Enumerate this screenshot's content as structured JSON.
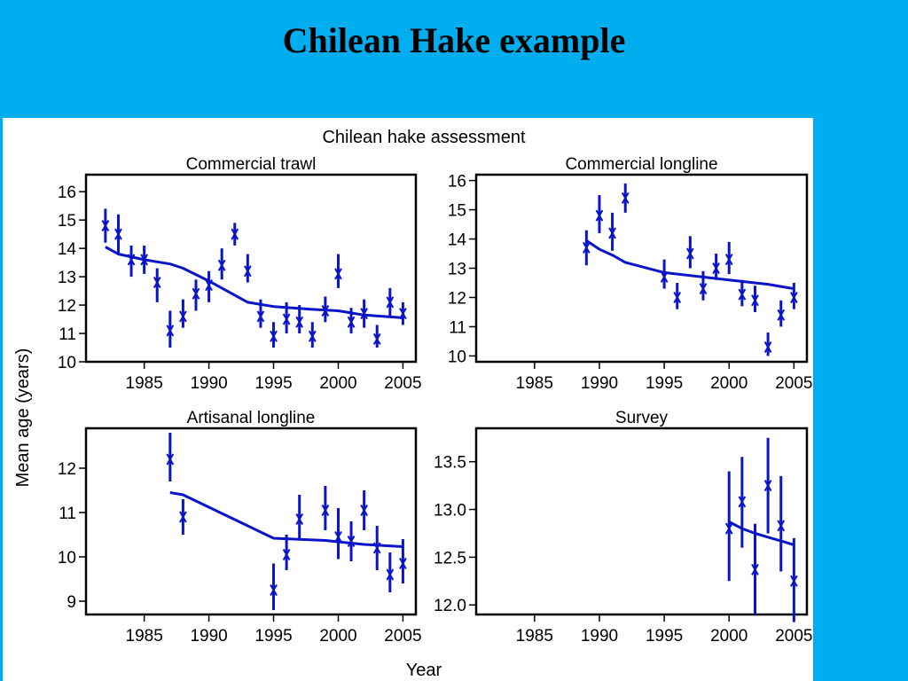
{
  "slide": {
    "title": "Chilean Hake example",
    "background_color": "#00AEEF"
  },
  "figure": {
    "title": "Chilean hake assessment",
    "ylabel": "Mean age (years)",
    "xlabel": "Year",
    "colors": {
      "series": "#0A14C8",
      "axes": "#000000",
      "panel": "#FFFFFF"
    }
  },
  "chart_data": [
    {
      "type": "scatter",
      "title": "Commercial trawl",
      "xlim": [
        1980.5,
        2006
      ],
      "ylim": [
        10,
        16.6
      ],
      "x_ticks": [
        1985,
        1990,
        1995,
        2000,
        2005
      ],
      "y_ticks": [
        10,
        11,
        12,
        13,
        14,
        15,
        16
      ],
      "observed": [
        {
          "x": 1982,
          "y": 14.8,
          "lo": 14.2,
          "hi": 15.4
        },
        {
          "x": 1983,
          "y": 14.5,
          "lo": 13.8,
          "hi": 15.2
        },
        {
          "x": 1984,
          "y": 13.6,
          "lo": 13.0,
          "hi": 14.1
        },
        {
          "x": 1985,
          "y": 13.6,
          "lo": 13.1,
          "hi": 14.1
        },
        {
          "x": 1986,
          "y": 12.8,
          "lo": 12.1,
          "hi": 13.3
        },
        {
          "x": 1987,
          "y": 11.1,
          "lo": 10.5,
          "hi": 11.8
        },
        {
          "x": 1988,
          "y": 11.6,
          "lo": 11.2,
          "hi": 12.2
        },
        {
          "x": 1989,
          "y": 12.4,
          "lo": 11.8,
          "hi": 12.9
        },
        {
          "x": 1990,
          "y": 12.7,
          "lo": 12.1,
          "hi": 13.2
        },
        {
          "x": 1991,
          "y": 13.4,
          "lo": 12.9,
          "hi": 14.0
        },
        {
          "x": 1992,
          "y": 14.5,
          "lo": 14.1,
          "hi": 14.9
        },
        {
          "x": 1993,
          "y": 13.2,
          "lo": 12.8,
          "hi": 13.8
        },
        {
          "x": 1994,
          "y": 11.6,
          "lo": 11.2,
          "hi": 12.2
        },
        {
          "x": 1995,
          "y": 10.9,
          "lo": 10.5,
          "hi": 11.4
        },
        {
          "x": 1996,
          "y": 11.5,
          "lo": 11.0,
          "hi": 12.1
        },
        {
          "x": 1997,
          "y": 11.4,
          "lo": 11.0,
          "hi": 12.0
        },
        {
          "x": 1998,
          "y": 10.9,
          "lo": 10.5,
          "hi": 11.4
        },
        {
          "x": 1999,
          "y": 11.8,
          "lo": 11.4,
          "hi": 12.3
        },
        {
          "x": 2000,
          "y": 13.1,
          "lo": 12.6,
          "hi": 13.8
        },
        {
          "x": 2001,
          "y": 11.4,
          "lo": 11.0,
          "hi": 11.9
        },
        {
          "x": 2002,
          "y": 11.7,
          "lo": 11.2,
          "hi": 12.2
        },
        {
          "x": 2003,
          "y": 10.8,
          "lo": 10.5,
          "hi": 11.3
        },
        {
          "x": 2004,
          "y": 12.1,
          "lo": 11.6,
          "hi": 12.6
        },
        {
          "x": 2005,
          "y": 11.7,
          "lo": 11.3,
          "hi": 12.1
        }
      ],
      "fitted": [
        {
          "x": 1982,
          "y": 14.05
        },
        {
          "x": 1983,
          "y": 13.8
        },
        {
          "x": 1985,
          "y": 13.6
        },
        {
          "x": 1987,
          "y": 13.45
        },
        {
          "x": 1988,
          "y": 13.3
        },
        {
          "x": 1990,
          "y": 12.85
        },
        {
          "x": 1993,
          "y": 12.1
        },
        {
          "x": 1995,
          "y": 11.95
        },
        {
          "x": 1998,
          "y": 11.85
        },
        {
          "x": 2000,
          "y": 11.8
        },
        {
          "x": 2002,
          "y": 11.65
        },
        {
          "x": 2005,
          "y": 11.55
        }
      ]
    },
    {
      "type": "scatter",
      "title": "Commercial longline",
      "xlim": [
        1980.5,
        2006
      ],
      "ylim": [
        9.8,
        16.2
      ],
      "x_ticks": [
        1985,
        1990,
        1995,
        2000,
        2005
      ],
      "y_ticks": [
        10,
        11,
        12,
        13,
        14,
        15,
        16
      ],
      "observed": [
        {
          "x": 1989,
          "y": 13.7,
          "lo": 13.1,
          "hi": 14.3
        },
        {
          "x": 1990,
          "y": 14.8,
          "lo": 14.2,
          "hi": 15.5
        },
        {
          "x": 1991,
          "y": 14.2,
          "lo": 13.6,
          "hi": 14.9
        },
        {
          "x": 1992,
          "y": 15.4,
          "lo": 14.9,
          "hi": 15.9
        },
        {
          "x": 1995,
          "y": 12.7,
          "lo": 12.3,
          "hi": 13.3
        },
        {
          "x": 1996,
          "y": 12.0,
          "lo": 11.6,
          "hi": 12.5
        },
        {
          "x": 1997,
          "y": 13.5,
          "lo": 13.0,
          "hi": 14.1
        },
        {
          "x": 1998,
          "y": 12.3,
          "lo": 11.9,
          "hi": 12.9
        },
        {
          "x": 1999,
          "y": 13.0,
          "lo": 12.6,
          "hi": 13.5
        },
        {
          "x": 2000,
          "y": 13.3,
          "lo": 12.8,
          "hi": 13.9
        },
        {
          "x": 2001,
          "y": 12.1,
          "lo": 11.7,
          "hi": 12.6
        },
        {
          "x": 2002,
          "y": 11.9,
          "lo": 11.5,
          "hi": 12.4
        },
        {
          "x": 2003,
          "y": 10.3,
          "lo": 10.0,
          "hi": 10.8
        },
        {
          "x": 2004,
          "y": 11.4,
          "lo": 11.0,
          "hi": 11.9
        },
        {
          "x": 2005,
          "y": 12.0,
          "lo": 11.6,
          "hi": 12.5
        }
      ],
      "fitted": [
        {
          "x": 1989,
          "y": 13.95
        },
        {
          "x": 1990,
          "y": 13.65
        },
        {
          "x": 1991,
          "y": 13.45
        },
        {
          "x": 1992,
          "y": 13.2
        },
        {
          "x": 1995,
          "y": 12.85
        },
        {
          "x": 1997,
          "y": 12.75
        },
        {
          "x": 2000,
          "y": 12.6
        },
        {
          "x": 2003,
          "y": 12.45
        },
        {
          "x": 2005,
          "y": 12.3
        }
      ]
    },
    {
      "type": "scatter",
      "title": "Artisanal longline",
      "xlim": [
        1980.5,
        2006
      ],
      "ylim": [
        8.7,
        12.9
      ],
      "x_ticks": [
        1985,
        1990,
        1995,
        2000,
        2005
      ],
      "y_ticks": [
        9,
        10,
        11,
        12
      ],
      "observed": [
        {
          "x": 1987,
          "y": 12.2,
          "lo": 11.7,
          "hi": 12.8
        },
        {
          "x": 1988,
          "y": 10.9,
          "lo": 10.5,
          "hi": 11.3
        },
        {
          "x": 1995,
          "y": 9.25,
          "lo": 8.8,
          "hi": 9.85
        },
        {
          "x": 1996,
          "y": 10.05,
          "lo": 9.7,
          "hi": 10.5
        },
        {
          "x": 1997,
          "y": 10.85,
          "lo": 10.4,
          "hi": 11.4
        },
        {
          "x": 1999,
          "y": 11.05,
          "lo": 10.6,
          "hi": 11.6
        },
        {
          "x": 2000,
          "y": 10.45,
          "lo": 9.95,
          "hi": 11.1
        },
        {
          "x": 2001,
          "y": 10.35,
          "lo": 9.9,
          "hi": 10.8
        },
        {
          "x": 2002,
          "y": 11.05,
          "lo": 10.6,
          "hi": 11.5
        },
        {
          "x": 2003,
          "y": 10.2,
          "lo": 9.7,
          "hi": 10.7
        },
        {
          "x": 2004,
          "y": 9.6,
          "lo": 9.2,
          "hi": 10.1
        },
        {
          "x": 2005,
          "y": 9.85,
          "lo": 9.4,
          "hi": 10.4
        }
      ],
      "fitted": [
        {
          "x": 1987,
          "y": 11.45
        },
        {
          "x": 1988,
          "y": 11.4
        },
        {
          "x": 1995,
          "y": 10.42
        },
        {
          "x": 1999,
          "y": 10.37
        },
        {
          "x": 2002,
          "y": 10.28
        },
        {
          "x": 2005,
          "y": 10.23
        }
      ]
    },
    {
      "type": "scatter",
      "title": "Survey",
      "xlim": [
        1980.5,
        2006
      ],
      "ylim": [
        11.9,
        13.85
      ],
      "x_ticks": [
        1985,
        1990,
        1995,
        2000,
        2005
      ],
      "y_ticks": [
        12.0,
        12.5,
        13.0,
        13.5
      ],
      "y_tick_labels": [
        "12.0",
        "12.5",
        "13.0",
        "13.5"
      ],
      "observed": [
        {
          "x": 2000,
          "y": 12.8,
          "lo": 12.25,
          "hi": 13.4
        },
        {
          "x": 2001,
          "y": 13.08,
          "lo": 12.6,
          "hi": 13.55
        },
        {
          "x": 2002,
          "y": 12.37,
          "lo": 11.9,
          "hi": 12.85
        },
        {
          "x": 2003,
          "y": 13.25,
          "lo": 12.75,
          "hi": 13.75
        },
        {
          "x": 2004,
          "y": 12.83,
          "lo": 12.35,
          "hi": 13.35
        },
        {
          "x": 2005,
          "y": 12.25,
          "lo": 11.82,
          "hi": 12.7
        }
      ],
      "fitted": [
        {
          "x": 2000,
          "y": 12.87
        },
        {
          "x": 2001,
          "y": 12.8
        },
        {
          "x": 2002,
          "y": 12.75
        },
        {
          "x": 2003,
          "y": 12.71
        },
        {
          "x": 2004,
          "y": 12.67
        },
        {
          "x": 2005,
          "y": 12.63
        }
      ]
    }
  ]
}
